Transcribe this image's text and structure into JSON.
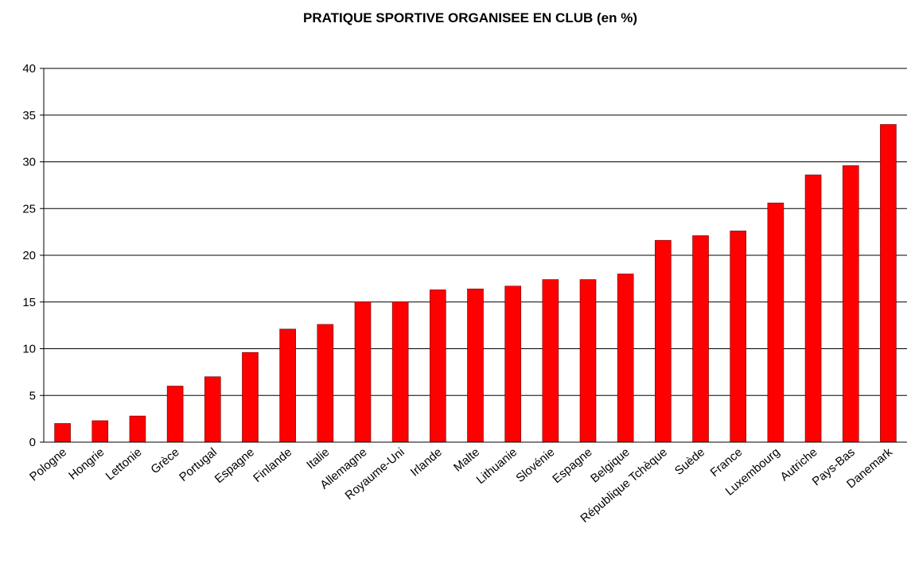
{
  "chart_data": {
    "type": "bar",
    "title": "PRATIQUE SPORTIVE ORGANISEE EN CLUB (en %)",
    "categories": [
      "Pologne",
      "Hongrie",
      "Lettonie",
      "Grèce",
      "Portugal",
      "Espagne",
      "Finlande",
      "Italie",
      "Allemagne",
      "Royaume-Uni",
      "Irlande",
      "Malte",
      "Lithuanie",
      "Slovénie",
      "Espagne",
      "Belgique",
      "République Tchèque",
      "Suède",
      "France",
      "Luxembourg",
      "Autriche",
      "Pays-Bas",
      "Danemark"
    ],
    "values": [
      2.0,
      2.3,
      2.8,
      6.0,
      7.0,
      9.6,
      12.1,
      12.6,
      15.0,
      15.0,
      16.3,
      16.4,
      16.7,
      17.4,
      17.4,
      18.0,
      21.6,
      22.1,
      22.6,
      25.6,
      28.6,
      29.6,
      34.0
    ],
    "color": "#ff0000",
    "ylim": [
      0,
      40
    ],
    "yticks": [
      0,
      5,
      10,
      15,
      20,
      25,
      30,
      35,
      40
    ],
    "grid": true
  }
}
